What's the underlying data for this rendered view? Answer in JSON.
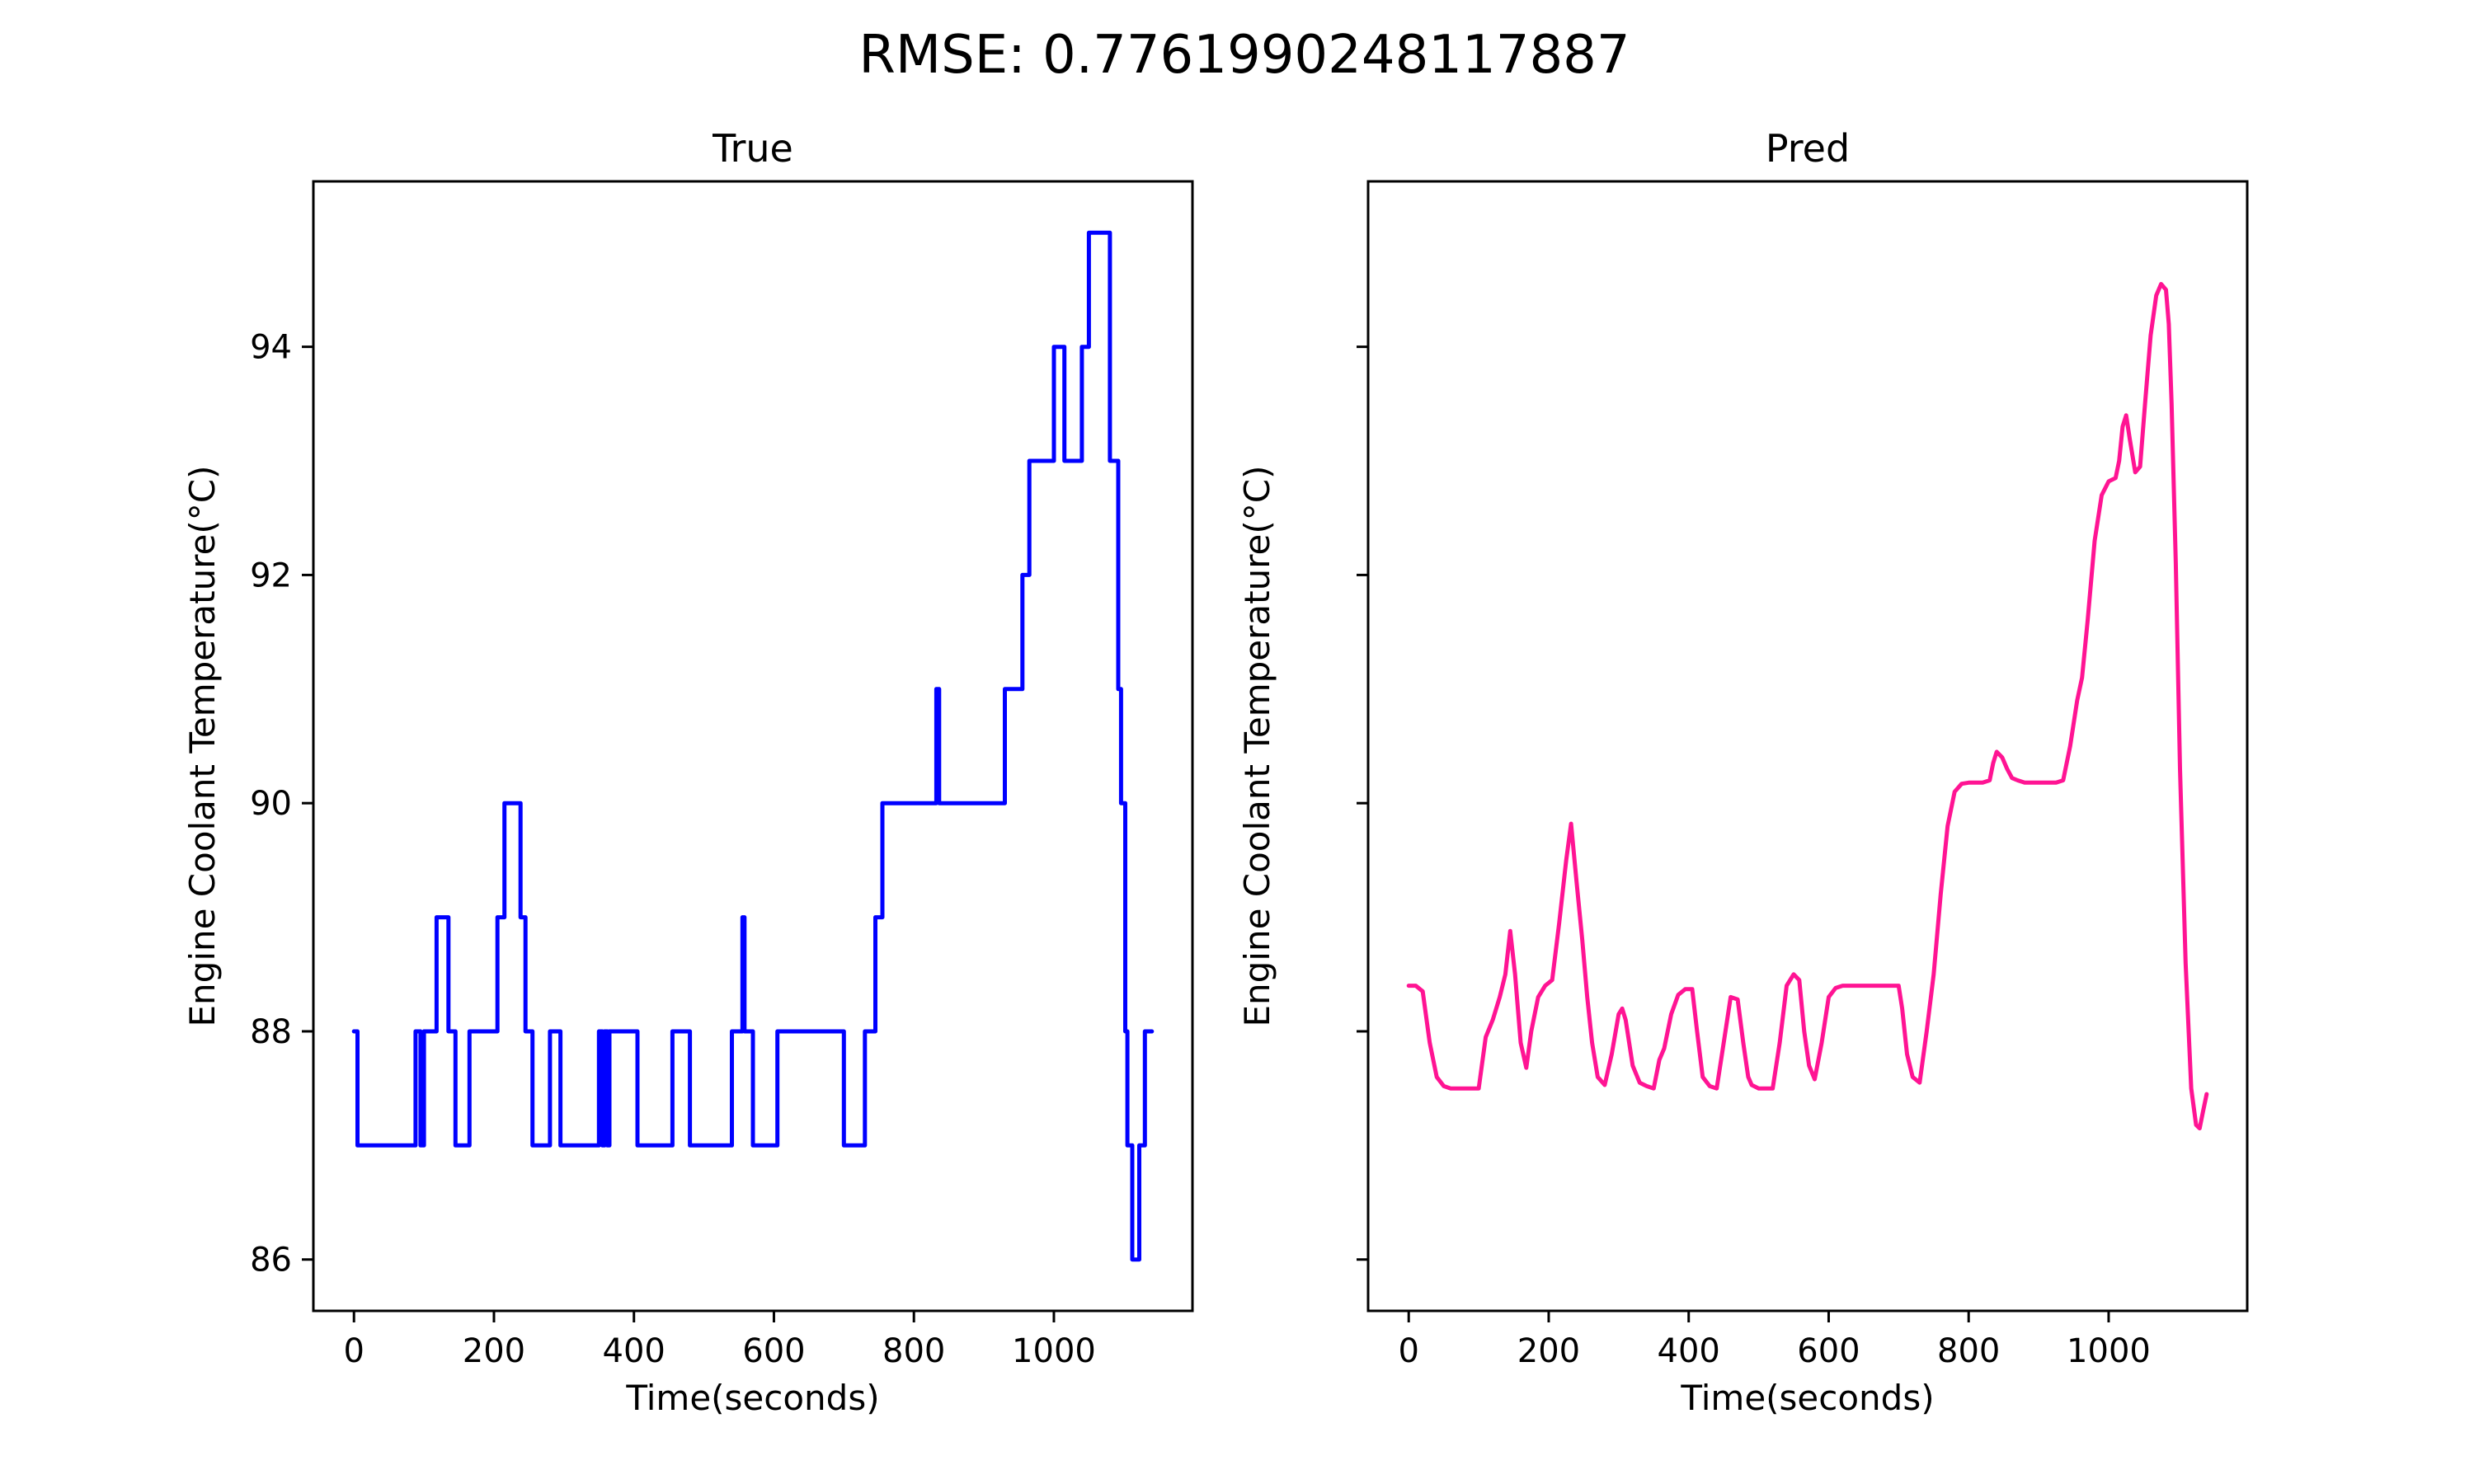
{
  "figure": {
    "suptitle": "RMSE: 0.7761990248117887"
  },
  "chart_data": [
    {
      "type": "line",
      "title": "True",
      "xlabel": "Time(seconds)",
      "ylabel": "Engine Coolant Temperature(°C)",
      "xlim": [
        -58,
        1198
      ],
      "ylim": [
        85.55,
        95.45
      ],
      "xticks": [
        0,
        200,
        400,
        600,
        800,
        1000
      ],
      "yticks": [
        86,
        88,
        90,
        92,
        94
      ],
      "show_ytick_labels": true,
      "grid": false,
      "color": "#0000ff",
      "step": true,
      "series": [
        {
          "x": [
            0,
            5,
            88,
            95,
            100,
            118,
            125,
            135,
            145,
            165,
            205,
            215,
            225,
            238,
            245,
            255,
            280,
            295,
            305,
            345,
            350,
            355,
            358,
            362,
            365,
            400,
            405,
            455,
            480,
            540,
            555,
            558,
            562,
            570,
            600,
            605,
            700,
            730,
            745,
            750,
            755,
            830,
            832,
            836,
            840,
            930,
            955,
            960,
            965,
            1000,
            1015,
            1040,
            1050,
            1080,
            1088,
            1092,
            1096,
            1102,
            1105,
            1112,
            1122,
            1130,
            1140
          ],
          "y": [
            88,
            87,
            88,
            87,
            88,
            89,
            89,
            88,
            87,
            88,
            89,
            90,
            90,
            89,
            88,
            87,
            88,
            87,
            87,
            87,
            88,
            87,
            88,
            87,
            88,
            88,
            87,
            88,
            87,
            88,
            89,
            88,
            88,
            87,
            87,
            88,
            87,
            88,
            89,
            89,
            90,
            90,
            91,
            90,
            90,
            91,
            92,
            92,
            93,
            94,
            93,
            94,
            95,
            93,
            93,
            91,
            90,
            88,
            87,
            86,
            87,
            88,
            88
          ]
        }
      ]
    },
    {
      "type": "line",
      "title": "Pred",
      "xlabel": "Time(seconds)",
      "ylabel": "Engine Coolant Temperature(°C)",
      "xlim": [
        -58,
        1198
      ],
      "ylim": [
        85.55,
        95.45
      ],
      "xticks": [
        0,
        200,
        400,
        600,
        800,
        1000
      ],
      "yticks": [
        86,
        88,
        90,
        92,
        94
      ],
      "show_ytick_labels": false,
      "grid": false,
      "color": "#ff1493",
      "step": false,
      "series": [
        {
          "x": [
            0,
            10,
            20,
            30,
            40,
            50,
            60,
            70,
            80,
            90,
            100,
            110,
            120,
            130,
            138,
            145,
            152,
            160,
            168,
            175,
            185,
            195,
            205,
            215,
            225,
            232,
            240,
            248,
            255,
            262,
            270,
            280,
            290,
            300,
            305,
            310,
            320,
            330,
            340,
            350,
            358,
            365,
            375,
            385,
            395,
            405,
            412,
            420,
            430,
            440,
            450,
            460,
            470,
            478,
            485,
            490,
            500,
            510,
            520,
            530,
            540,
            550,
            558,
            565,
            572,
            580,
            590,
            600,
            610,
            620,
            630,
            640,
            660,
            680,
            700,
            705,
            712,
            720,
            730,
            740,
            750,
            760,
            770,
            780,
            790,
            800,
            810,
            820,
            830,
            835,
            840,
            848,
            855,
            862,
            870,
            880,
            890,
            900,
            910,
            925,
            935,
            945,
            955,
            962,
            970,
            980,
            990,
            1000,
            1010,
            1015,
            1020,
            1025,
            1030,
            1038,
            1045,
            1052,
            1060,
            1068,
            1075,
            1082,
            1086,
            1090,
            1096,
            1102,
            1110,
            1118,
            1125,
            1130,
            1135,
            1140
          ],
          "y": [
            88.4,
            88.4,
            88.35,
            87.9,
            87.6,
            87.52,
            87.5,
            87.5,
            87.5,
            87.5,
            87.5,
            87.95,
            88.1,
            88.3,
            88.5,
            88.88,
            88.5,
            87.9,
            87.68,
            88.0,
            88.3,
            88.4,
            88.45,
            88.95,
            89.5,
            89.82,
            89.3,
            88.8,
            88.3,
            87.9,
            87.6,
            87.53,
            87.8,
            88.15,
            88.2,
            88.1,
            87.7,
            87.55,
            87.52,
            87.5,
            87.75,
            87.85,
            88.15,
            88.32,
            88.37,
            88.37,
            88.0,
            87.6,
            87.52,
            87.5,
            87.9,
            88.3,
            88.28,
            87.9,
            87.6,
            87.53,
            87.5,
            87.5,
            87.5,
            87.9,
            88.4,
            88.5,
            88.45,
            88.0,
            87.7,
            87.58,
            87.9,
            88.3,
            88.38,
            88.4,
            88.4,
            88.4,
            88.4,
            88.4,
            88.4,
            88.2,
            87.8,
            87.6,
            87.55,
            88.0,
            88.5,
            89.2,
            89.8,
            90.1,
            90.17,
            90.18,
            90.18,
            90.18,
            90.2,
            90.35,
            90.45,
            90.4,
            90.3,
            90.22,
            90.2,
            90.18,
            90.18,
            90.18,
            90.18,
            90.18,
            90.2,
            90.5,
            90.9,
            91.1,
            91.6,
            92.3,
            92.7,
            92.82,
            92.85,
            93.0,
            93.3,
            93.4,
            93.2,
            92.9,
            92.95,
            93.5,
            94.1,
            94.45,
            94.55,
            94.5,
            94.2,
            93.5,
            92.1,
            90.3,
            88.6,
            87.5,
            87.18,
            87.15,
            87.3,
            87.45
          ]
        }
      ]
    }
  ]
}
